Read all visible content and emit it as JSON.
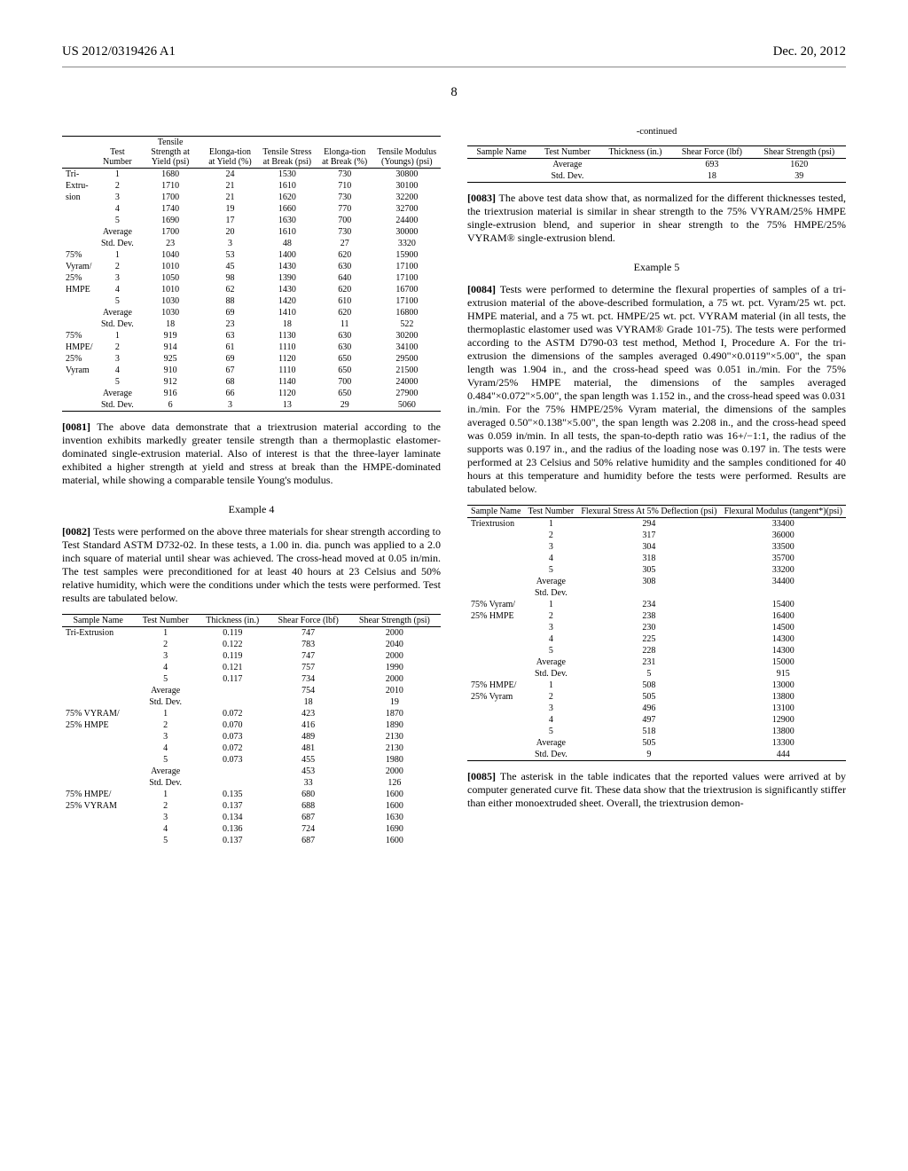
{
  "header": {
    "doc_id": "US 2012/0319426 A1",
    "date": "Dec. 20, 2012",
    "page": "8"
  },
  "table1": {
    "headers": [
      "",
      "Test Number",
      "Tensile Strength at Yield (psi)",
      "Elonga-tion at Yield (%)",
      "Tensile Stress at Break (psi)",
      "Elonga-tion at Break (%)",
      "Tensile Modulus (Youngs) (psi)"
    ],
    "groups": [
      {
        "label_lines": [
          "Tri-",
          "Extru-",
          "sion",
          "",
          "",
          "",
          ""
        ],
        "rows": [
          [
            "1",
            "1680",
            "24",
            "1530",
            "730",
            "30800"
          ],
          [
            "2",
            "1710",
            "21",
            "1610",
            "710",
            "30100"
          ],
          [
            "3",
            "1700",
            "21",
            "1620",
            "730",
            "32200"
          ],
          [
            "4",
            "1740",
            "19",
            "1660",
            "770",
            "32700"
          ],
          [
            "5",
            "1690",
            "17",
            "1630",
            "700",
            "24400"
          ],
          [
            "Average",
            "1700",
            "20",
            "1610",
            "730",
            "30000"
          ],
          [
            "Std. Dev.",
            "23",
            "3",
            "48",
            "27",
            "3320"
          ]
        ]
      },
      {
        "label_lines": [
          "75%",
          "Vyram/",
          "25%",
          "HMPE",
          "",
          "",
          ""
        ],
        "rows": [
          [
            "1",
            "1040",
            "53",
            "1400",
            "620",
            "15900"
          ],
          [
            "2",
            "1010",
            "45",
            "1430",
            "630",
            "17100"
          ],
          [
            "3",
            "1050",
            "98",
            "1390",
            "640",
            "17100"
          ],
          [
            "4",
            "1010",
            "62",
            "1430",
            "620",
            "16700"
          ],
          [
            "5",
            "1030",
            "88",
            "1420",
            "610",
            "17100"
          ],
          [
            "Average",
            "1030",
            "69",
            "1410",
            "620",
            "16800"
          ],
          [
            "Std. Dev.",
            "18",
            "23",
            "18",
            "11",
            "522"
          ]
        ]
      },
      {
        "label_lines": [
          "75%",
          "HMPE/",
          "25%",
          "Vyram",
          "",
          "",
          ""
        ],
        "rows": [
          [
            "1",
            "919",
            "63",
            "1130",
            "630",
            "30200"
          ],
          [
            "2",
            "914",
            "61",
            "1110",
            "630",
            "34100"
          ],
          [
            "3",
            "925",
            "69",
            "1120",
            "650",
            "29500"
          ],
          [
            "4",
            "910",
            "67",
            "1110",
            "650",
            "21500"
          ],
          [
            "5",
            "912",
            "68",
            "1140",
            "700",
            "24000"
          ],
          [
            "Average",
            "916",
            "66",
            "1120",
            "650",
            "27900"
          ],
          [
            "Std. Dev.",
            "6",
            "3",
            "13",
            "29",
            "5060"
          ]
        ]
      }
    ]
  },
  "para_0081": "The above data demonstrate that a triextrusion material according to the invention exhibits markedly greater tensile strength than a thermoplastic elastomer-dominated single-extrusion material. Also of interest is that the three-layer laminate exhibited a higher strength at yield and stress at break than the HMPE-dominated material, while showing a comparable tensile Young's modulus.",
  "example4_title": "Example 4",
  "para_0082": "Tests were performed on the above three materials for shear strength according to Test Standard ASTM D732-02. In these tests, a 1.00 in. dia. punch was applied to a 2.0 inch square of material until shear was achieved. The cross-head moved at 0.05 in/min. The test samples were preconditioned for at least 40 hours at 23 Celsius and 50% relative humidity, which were the conditions under which the tests were performed. Test results are tabulated below.",
  "table2": {
    "headers": [
      "Sample Name",
      "Test Number",
      "Thickness (in.)",
      "Shear Force (lbf)",
      "Shear Strength (psi)"
    ],
    "groups": [
      {
        "label": "Tri-Extrusion",
        "rows": [
          [
            "1",
            "0.119",
            "747",
            "2000"
          ],
          [
            "2",
            "0.122",
            "783",
            "2040"
          ],
          [
            "3",
            "0.119",
            "747",
            "2000"
          ],
          [
            "4",
            "0.121",
            "757",
            "1990"
          ],
          [
            "5",
            "0.117",
            "734",
            "2000"
          ],
          [
            "Average",
            "",
            "754",
            "2010"
          ],
          [
            "Std. Dev.",
            "",
            "18",
            "19"
          ]
        ]
      },
      {
        "label": "75% VYRAM/\n25% HMPE",
        "rows": [
          [
            "1",
            "0.072",
            "423",
            "1870"
          ],
          [
            "2",
            "0.070",
            "416",
            "1890"
          ],
          [
            "3",
            "0.073",
            "489",
            "2130"
          ],
          [
            "4",
            "0.072",
            "481",
            "2130"
          ],
          [
            "5",
            "0.073",
            "455",
            "1980"
          ],
          [
            "Average",
            "",
            "453",
            "2000"
          ],
          [
            "Std. Dev.",
            "",
            "33",
            "126"
          ]
        ]
      },
      {
        "label": "75% HMPE/\n25% VYRAM",
        "rows": [
          [
            "1",
            "0.135",
            "680",
            "1600"
          ],
          [
            "2",
            "0.137",
            "688",
            "1600"
          ],
          [
            "3",
            "0.134",
            "687",
            "1630"
          ],
          [
            "4",
            "0.136",
            "724",
            "1690"
          ],
          [
            "5",
            "0.137",
            "687",
            "1600"
          ]
        ]
      }
    ]
  },
  "table2_cont": {
    "continued_label": "-continued",
    "headers": [
      "Sample Name",
      "Test Number",
      "Thickness (in.)",
      "Shear Force (lbf)",
      "Shear Strength (psi)"
    ],
    "rows": [
      [
        "",
        "Average",
        "",
        "693",
        "1620"
      ],
      [
        "",
        "Std. Dev.",
        "",
        "18",
        "39"
      ]
    ]
  },
  "para_0083": "The above test data show that, as normalized for the different thicknesses tested, the triextrusion material is similar in shear strength to the 75% VYRAM/25% HMPE single-extrusion blend, and superior in shear strength to the 75% HMPE/25% VYRAM® single-extrusion blend.",
  "example5_title": "Example 5",
  "para_0084": "Tests were performed to determine the flexural properties of samples of a tri-extrusion material of the above-described formulation, a 75 wt. pct. Vyram/25 wt. pct. HMPE material, and a 75 wt. pct. HMPE/25 wt. pct. VYRAM material (in all tests, the thermoplastic elastomer used was VYRAM® Grade 101-75). The tests were performed according to the ASTM D790-03 test method, Method I, Procedure A. For the tri-extrusion the dimensions of the samples averaged 0.490\"×0.0119\"×5.00\", the span length was 1.904 in., and the cross-head speed was 0.051 in./min. For the 75% Vyram/25% HMPE material, the dimensions of the samples averaged 0.484\"×0.072\"×5.00\", the span length was 1.152 in., and the cross-head speed was 0.031 in./min. For the 75% HMPE/25% Vyram material, the dimensions of the samples averaged 0.50\"×0.138\"×5.00\", the span length was 2.208 in., and the cross-head speed was 0.059 in/min. In all tests, the span-to-depth ratio was 16+/−1:1, the radius of the supports was 0.197 in., and the radius of the loading nose was 0.197 in. The tests were performed at 23 Celsius and 50% relative humidity and the samples conditioned for 40 hours at this temperature and humidity before the tests were performed. Results are tabulated below.",
  "table3": {
    "headers": [
      "Sample Name",
      "Test Number",
      "Flexural Stress At 5% Deflection (psi)",
      "Flexural Modulus (tangent*)(psi)"
    ],
    "groups": [
      {
        "label": "Triextrusion",
        "rows": [
          [
            "1",
            "294",
            "33400"
          ],
          [
            "2",
            "317",
            "36000"
          ],
          [
            "3",
            "304",
            "33500"
          ],
          [
            "4",
            "318",
            "35700"
          ],
          [
            "5",
            "305",
            "33200"
          ],
          [
            "Average",
            "308",
            "34400"
          ],
          [
            "Std. Dev.",
            "",
            ""
          ]
        ]
      },
      {
        "label": "75% Vyram/\n25% HMPE",
        "rows": [
          [
            "1",
            "234",
            "15400"
          ],
          [
            "2",
            "238",
            "16400"
          ],
          [
            "3",
            "230",
            "14500"
          ],
          [
            "4",
            "225",
            "14300"
          ],
          [
            "5",
            "228",
            "14300"
          ],
          [
            "Average",
            "231",
            "15000"
          ],
          [
            "Std. Dev.",
            "5",
            "915"
          ]
        ]
      },
      {
        "label": "75% HMPE/\n25% Vyram",
        "rows": [
          [
            "1",
            "508",
            "13000"
          ],
          [
            "2",
            "505",
            "13800"
          ],
          [
            "3",
            "496",
            "13100"
          ],
          [
            "4",
            "497",
            "12900"
          ],
          [
            "5",
            "518",
            "13800"
          ],
          [
            "Average",
            "505",
            "13300"
          ],
          [
            "Std. Dev.",
            "9",
            "444"
          ]
        ]
      }
    ]
  },
  "para_0085": "The asterisk in the table indicates that the reported values were arrived at by computer generated curve fit. These data show that the triextrusion is significantly stiffer than either monoextruded sheet. Overall, the triextrusion demon-"
}
